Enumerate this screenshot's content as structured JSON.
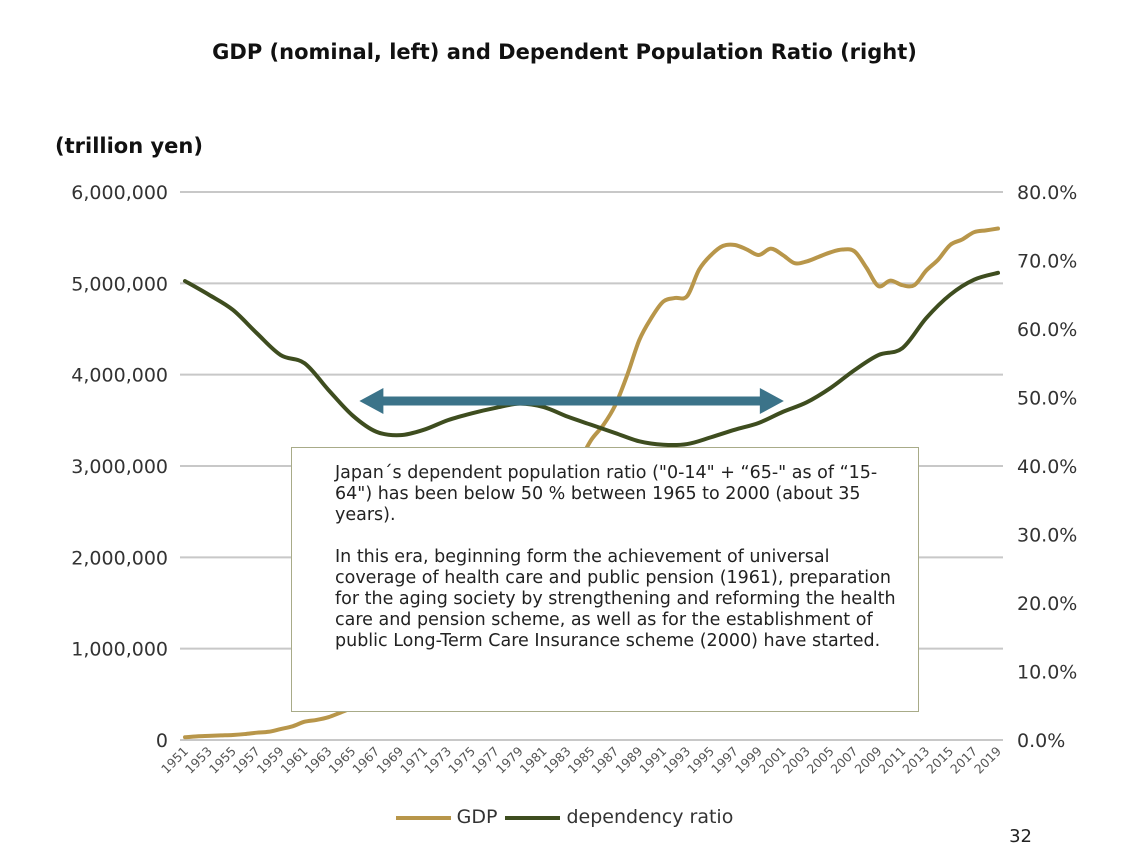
{
  "chart_data": {
    "type": "line",
    "title": "GDP (nominal, left) and Dependent Population Ratio (right)",
    "ylabel": "(trillion yen)",
    "ylim": [
      0,
      6000000
    ],
    "y2lim": [
      0,
      0.8
    ],
    "yticks": [
      "0",
      "1,000,000",
      "2,000,000",
      "3,000,000",
      "4,000,000",
      "5,000,000",
      "6,000,000"
    ],
    "y2ticks": [
      "0.0%",
      "10.0%",
      "20.0%",
      "30.0%",
      "40.0%",
      "50.0%",
      "60.0%",
      "70.0%",
      "80.0%"
    ],
    "xticks": [
      "1951",
      "1953",
      "1955",
      "1957",
      "1959",
      "1961",
      "1963",
      "1965",
      "1967",
      "1969",
      "1971",
      "1973",
      "1975",
      "1977",
      "1979",
      "1981",
      "1983",
      "1985",
      "1987",
      "1989",
      "1991",
      "1993",
      "1995",
      "1997",
      "1999",
      "2001",
      "2003",
      "2005",
      "2007",
      "2009",
      "2011",
      "2013",
      "2015",
      "2017",
      "2019"
    ],
    "grid": true,
    "legend_position": "bottom",
    "series": [
      {
        "name": "GDP",
        "axis": "left",
        "color": "#b8964a",
        "x": [
          1951,
          1952,
          1953,
          1954,
          1955,
          1956,
          1957,
          1958,
          1959,
          1960,
          1961,
          1962,
          1963,
          1964,
          1965,
          1966,
          1967,
          1968,
          1969,
          1970,
          1971,
          1972,
          1973,
          1974,
          1975,
          1976,
          1977,
          1978,
          1979,
          1980,
          1981,
          1982,
          1983,
          1984,
          1985,
          1986,
          1987,
          1988,
          1989,
          1990,
          1991,
          1992,
          1993,
          1994,
          1995,
          1996,
          1997,
          1998,
          1999,
          2000,
          2001,
          2002,
          2003,
          2004,
          2005,
          2006,
          2007,
          2008,
          2009,
          2010,
          2011,
          2012,
          2013,
          2014,
          2015,
          2016,
          2017,
          2018,
          2019
        ],
        "values": [
          30000,
          40000,
          45000,
          50000,
          55000,
          65000,
          80000,
          90000,
          120000,
          150000,
          200000,
          220000,
          250000,
          300000,
          350000,
          390000,
          460000,
          540000,
          630000,
          750000,
          830000,
          960000,
          1160000,
          1380000,
          1520000,
          1710000,
          1900000,
          2080000,
          2250000,
          2480000,
          2640000,
          2760000,
          2880000,
          3060000,
          3290000,
          3450000,
          3670000,
          4000000,
          4380000,
          4620000,
          4800000,
          4840000,
          4860000,
          5150000,
          5310000,
          5410000,
          5420000,
          5370000,
          5310000,
          5380000,
          5310000,
          5220000,
          5240000,
          5290000,
          5340000,
          5370000,
          5350000,
          5170000,
          4970000,
          5030000,
          4980000,
          4980000,
          5140000,
          5260000,
          5420000,
          5480000,
          5560000,
          5580000,
          5600000
        ]
      },
      {
        "name": "dependency ratio",
        "axis": "right",
        "color": "#3e4d1f",
        "x": [
          1951,
          1953,
          1955,
          1957,
          1959,
          1961,
          1963,
          1965,
          1967,
          1969,
          1971,
          1973,
          1975,
          1977,
          1979,
          1981,
          1983,
          1985,
          1987,
          1989,
          1991,
          1993,
          1995,
          1997,
          1999,
          2001,
          2003,
          2005,
          2007,
          2009,
          2011,
          2013,
          2015,
          2017,
          2019
        ],
        "values": [
          0.67,
          0.65,
          0.628,
          0.594,
          0.562,
          0.55,
          0.511,
          0.474,
          0.45,
          0.445,
          0.453,
          0.467,
          0.477,
          0.485,
          0.491,
          0.486,
          0.472,
          0.46,
          0.448,
          0.436,
          0.431,
          0.432,
          0.442,
          0.453,
          0.463,
          0.479,
          0.493,
          0.514,
          0.54,
          0.562,
          0.572,
          0.616,
          0.65,
          0.672,
          0.682
        ]
      }
    ],
    "annotation_arrow": {
      "from": 1965,
      "to": 2000,
      "color": "#3b7389"
    }
  },
  "note": {
    "paragraph1": "Japan´s dependent population ratio (\"0-14\" + “65-\" as of “15-64\") has been below 50 % between 1965 to 2000 (about 35 years).",
    "paragraph2": "In this era, beginning form the achievement of universal coverage of health care and public pension (1961), preparation for the aging society by strengthening and reforming the health care and pension scheme, as well as for the establishment of public Long-Term Care Insurance scheme (2000) have started."
  },
  "page_number": "32"
}
